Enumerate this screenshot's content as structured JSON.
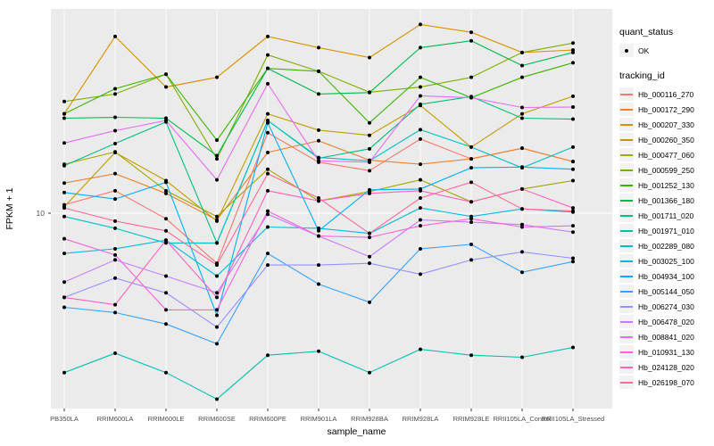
{
  "chart_data": {
    "type": "line",
    "title": "",
    "xlabel": "sample_name",
    "ylabel": "FPKM + 1",
    "y_scale": "log10",
    "y_ticks": [
      {
        "label": "10",
        "value": 10
      }
    ],
    "grid": true,
    "panel_bg": "#EBEBEB",
    "grid_color": "#FFFFFF",
    "point_color": "#000000",
    "tick_label_color": "#4D4D4D",
    "axis_title_color": "#000000",
    "categories": [
      "PB350LA",
      "RRIM600LA",
      "RRIM600LE",
      "RRIM600SE",
      "RRIM600PE",
      "RRIM901LA",
      "RRIM928BA",
      "RRIM928LA",
      "RRIM928LE",
      "RRII105LA_Control",
      "RRII105LA_Stressed"
    ],
    "legend": {
      "position": "right",
      "quant_status_title": "quant_status",
      "quant_status_items": [
        {
          "label": "OK",
          "shape": "point"
        }
      ],
      "tracking_id_title": "tracking_id"
    },
    "series": [
      {
        "name": "Hb_000116_270",
        "color": "#F8766D",
        "values": [
          10.8,
          12.3,
          9.5,
          6.3,
          21,
          16,
          14.8,
          19.8,
          16.5,
          18.2,
          16.1
        ]
      },
      {
        "name": "Hb_000172_290",
        "color": "#EA8331",
        "values": [
          13.2,
          14.4,
          12,
          9.4,
          17.5,
          19.5,
          16.3,
          15.7,
          16.5,
          18.2,
          16.1
        ]
      },
      {
        "name": "Hb_000207_330",
        "color": "#D89000",
        "values": [
          25,
          51,
          32,
          35,
          51,
          46,
          42,
          57,
          53,
          44,
          45
        ]
      },
      {
        "name": "Hb_000260_350",
        "color": "#C09B00",
        "values": [
          10.6,
          17.5,
          13.5,
          9.3,
          25,
          21.5,
          20.5,
          27,
          18.4,
          25,
          29.4
        ]
      },
      {
        "name": "Hb_000477_060",
        "color": "#A3A500",
        "values": [
          15.7,
          17.6,
          12.3,
          9.7,
          15,
          11.2,
          12.2,
          13.6,
          11.1,
          12.5,
          13.5
        ]
      },
      {
        "name": "Hb_000599_250",
        "color": "#7CAE00",
        "values": [
          28,
          30,
          36,
          16.5,
          43,
          37,
          30.5,
          32,
          35,
          44,
          48
        ]
      },
      {
        "name": "Hb_001252_130",
        "color": "#39B600",
        "values": [
          25,
          31.5,
          36,
          19.6,
          38,
          37,
          23,
          35,
          29,
          35,
          40
        ]
      },
      {
        "name": "Hb_001366_180",
        "color": "#00BB4E",
        "values": [
          24,
          24.2,
          24,
          17,
          38,
          30,
          30.4,
          46,
          49,
          39,
          44
        ]
      },
      {
        "name": "Hb_001711_020",
        "color": "#00BF7D",
        "values": [
          15.5,
          19,
          23.2,
          7.6,
          23.5,
          16.6,
          18.1,
          27.3,
          29.3,
          24,
          23.8
        ]
      },
      {
        "name": "Hb_001971_010",
        "color": "#00C0AF",
        "values": [
          2.3,
          2.75,
          2.3,
          1.8,
          2.7,
          2.8,
          2.3,
          2.85,
          2.7,
          2.65,
          2.9
        ]
      },
      {
        "name": "Hb_002289_080",
        "color": "#00BFC4",
        "values": [
          9.7,
          8.7,
          7.6,
          7.6,
          23.5,
          16.7,
          16.2,
          21.6,
          18.4,
          15.2,
          18.4
        ]
      },
      {
        "name": "Hb_003025_100",
        "color": "#00BAE0",
        "values": [
          6.9,
          7.2,
          7.8,
          5.6,
          8.8,
          8.7,
          8.3,
          10.5,
          9.7,
          10.4,
          10.1
        ]
      },
      {
        "name": "Hb_004934_100",
        "color": "#00B0F6",
        "values": [
          12.1,
          11.4,
          13.3,
          3.9,
          23,
          8.5,
          12.4,
          12.5,
          15.2,
          15.3,
          15
        ]
      },
      {
        "name": "Hb_005144_050",
        "color": "#35A2FF",
        "values": [
          4.2,
          4.0,
          3.6,
          3.0,
          6.9,
          5.2,
          4.4,
          7.2,
          7.5,
          5.8,
          6.4
        ]
      },
      {
        "name": "Hb_006274_030",
        "color": "#9590FF",
        "values": [
          4.6,
          5.5,
          4.8,
          3.5,
          6.2,
          6.2,
          6.3,
          5.7,
          6.5,
          7.0,
          6.6
        ]
      },
      {
        "name": "Hb_006478_020",
        "color": "#C77CFF",
        "values": [
          5.3,
          6.5,
          5.6,
          4.8,
          9.9,
          8.1,
          6.7,
          9.4,
          9.2,
          9.0,
          8.4
        ]
      },
      {
        "name": "Hb_008841_020",
        "color": "#E76BF3",
        "values": [
          19.1,
          21.4,
          23.5,
          13.6,
          33,
          16.2,
          16,
          29.5,
          29,
          26.5,
          26.6
        ]
      },
      {
        "name": "Hb_010931_130",
        "color": "#FA62DB",
        "values": [
          7.9,
          6.8,
          4.1,
          4.1,
          10.2,
          8.1,
          8.0,
          8.9,
          9.5,
          8.8,
          8.9
        ]
      },
      {
        "name": "Hb_024128_020",
        "color": "#FF62BC",
        "values": [
          4.6,
          4.3,
          7.8,
          4.6,
          12.3,
          11.2,
          12,
          12.3,
          11.1,
          12.5,
          10.5
        ]
      },
      {
        "name": "Hb_026198_070",
        "color": "#FF6A98",
        "values": [
          10.5,
          9.3,
          8.5,
          6.2,
          14.4,
          11.5,
          8.3,
          11.5,
          13.3,
          10.4,
          10.2
        ]
      }
    ]
  }
}
